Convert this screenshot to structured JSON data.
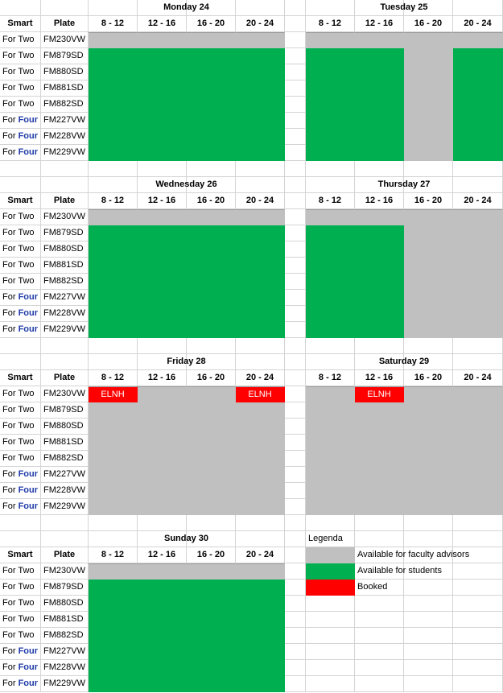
{
  "columns": {
    "smart": "Smart",
    "plate": "Plate"
  },
  "slots": [
    "8 - 12",
    "12 - 16",
    "16 - 20",
    "20 - 24"
  ],
  "cars": [
    {
      "smart_prefix": "For ",
      "smart_type": "Two",
      "plate": "FM230VW"
    },
    {
      "smart_prefix": "For ",
      "smart_type": "Two",
      "plate": "FM879SD"
    },
    {
      "smart_prefix": "For ",
      "smart_type": "Two",
      "plate": "FM880SD"
    },
    {
      "smart_prefix": "For ",
      "smart_type": "Two",
      "plate": "FM881SD"
    },
    {
      "smart_prefix": "For ",
      "smart_type": "Two",
      "plate": "FM882SD"
    },
    {
      "smart_prefix": "For ",
      "smart_type": "Four",
      "plate": "FM227VW"
    },
    {
      "smart_prefix": "For ",
      "smart_type": "Four",
      "plate": "FM228VW"
    },
    {
      "smart_prefix": "For ",
      "smart_type": "Four",
      "plate": "FM229VW"
    }
  ],
  "colors": {
    "faculty": "#c0c0c0",
    "students": "#00b050",
    "booked": "#ff0000"
  },
  "days": [
    {
      "title": "Monday 24",
      "grid": [
        [
          "F",
          "F",
          "F",
          "F"
        ],
        [
          "S",
          "S",
          "S",
          "S"
        ],
        [
          "S",
          "S",
          "S",
          "S"
        ],
        [
          "S",
          "S",
          "S",
          "S"
        ],
        [
          "S",
          "S",
          "S",
          "S"
        ],
        [
          "S",
          "S",
          "S",
          "S"
        ],
        [
          "S",
          "S",
          "S",
          "S"
        ],
        [
          "S",
          "S",
          "S",
          "S"
        ]
      ],
      "bookings": []
    },
    {
      "title": "Tuesday 25",
      "grid": [
        [
          "F",
          "F",
          "F",
          "F"
        ],
        [
          "S",
          "S",
          "F",
          "S"
        ],
        [
          "S",
          "S",
          "F",
          "S"
        ],
        [
          "S",
          "S",
          "F",
          "S"
        ],
        [
          "S",
          "S",
          "F",
          "S"
        ],
        [
          "S",
          "S",
          "F",
          "S"
        ],
        [
          "S",
          "S",
          "F",
          "S"
        ],
        [
          "S",
          "S",
          "F",
          "S"
        ]
      ],
      "bookings": []
    },
    {
      "title": "Wednesday 26",
      "grid": [
        [
          "F",
          "F",
          "F",
          "F"
        ],
        [
          "S",
          "S",
          "S",
          "S"
        ],
        [
          "S",
          "S",
          "S",
          "S"
        ],
        [
          "S",
          "S",
          "S",
          "S"
        ],
        [
          "S",
          "S",
          "S",
          "S"
        ],
        [
          "S",
          "S",
          "S",
          "S"
        ],
        [
          "S",
          "S",
          "S",
          "S"
        ],
        [
          "S",
          "S",
          "S",
          "S"
        ]
      ],
      "bookings": []
    },
    {
      "title": "Thursday 27",
      "grid": [
        [
          "F",
          "F",
          "F",
          "F"
        ],
        [
          "S",
          "S",
          "F",
          "F"
        ],
        [
          "S",
          "S",
          "F",
          "F"
        ],
        [
          "S",
          "S",
          "F",
          "F"
        ],
        [
          "S",
          "S",
          "F",
          "F"
        ],
        [
          "S",
          "S",
          "F",
          "F"
        ],
        [
          "S",
          "S",
          "F",
          "F"
        ],
        [
          "S",
          "S",
          "F",
          "F"
        ]
      ],
      "bookings": []
    },
    {
      "title": "Friday 28",
      "grid": [
        [
          "B",
          "F",
          "F",
          "B"
        ],
        [
          "F",
          "F",
          "F",
          "F"
        ],
        [
          "F",
          "F",
          "F",
          "F"
        ],
        [
          "F",
          "F",
          "F",
          "F"
        ],
        [
          "F",
          "F",
          "F",
          "F"
        ],
        [
          "F",
          "F",
          "F",
          "F"
        ],
        [
          "F",
          "F",
          "F",
          "F"
        ],
        [
          "F",
          "F",
          "F",
          "F"
        ]
      ],
      "bookings": [
        {
          "row": 0,
          "slot": 0,
          "label": "ELNH"
        },
        {
          "row": 0,
          "slot": 3,
          "label": "ELNH"
        }
      ]
    },
    {
      "title": "Saturday 29",
      "grid": [
        [
          "F",
          "B",
          "F",
          "F"
        ],
        [
          "F",
          "F",
          "F",
          "F"
        ],
        [
          "F",
          "F",
          "F",
          "F"
        ],
        [
          "F",
          "F",
          "F",
          "F"
        ],
        [
          "F",
          "F",
          "F",
          "F"
        ],
        [
          "F",
          "F",
          "F",
          "F"
        ],
        [
          "F",
          "F",
          "F",
          "F"
        ],
        [
          "F",
          "F",
          "F",
          "F"
        ]
      ],
      "bookings": [
        {
          "row": 0,
          "slot": 1,
          "label": "ELNH"
        }
      ]
    },
    {
      "title": "Sunday 30",
      "grid": [
        [
          "F",
          "F",
          "F",
          "F"
        ],
        [
          "S",
          "S",
          "S",
          "S"
        ],
        [
          "S",
          "S",
          "S",
          "S"
        ],
        [
          "S",
          "S",
          "S",
          "S"
        ],
        [
          "S",
          "S",
          "S",
          "S"
        ],
        [
          "S",
          "S",
          "S",
          "S"
        ],
        [
          "S",
          "S",
          "S",
          "S"
        ],
        [
          "S",
          "S",
          "S",
          "S"
        ]
      ],
      "bookings": []
    }
  ],
  "legend": {
    "title": "Legenda",
    "items": [
      {
        "key": "F",
        "label": "Available for faculty advisors"
      },
      {
        "key": "S",
        "label": "Available for students"
      },
      {
        "key": "B",
        "label": "Booked"
      }
    ]
  }
}
